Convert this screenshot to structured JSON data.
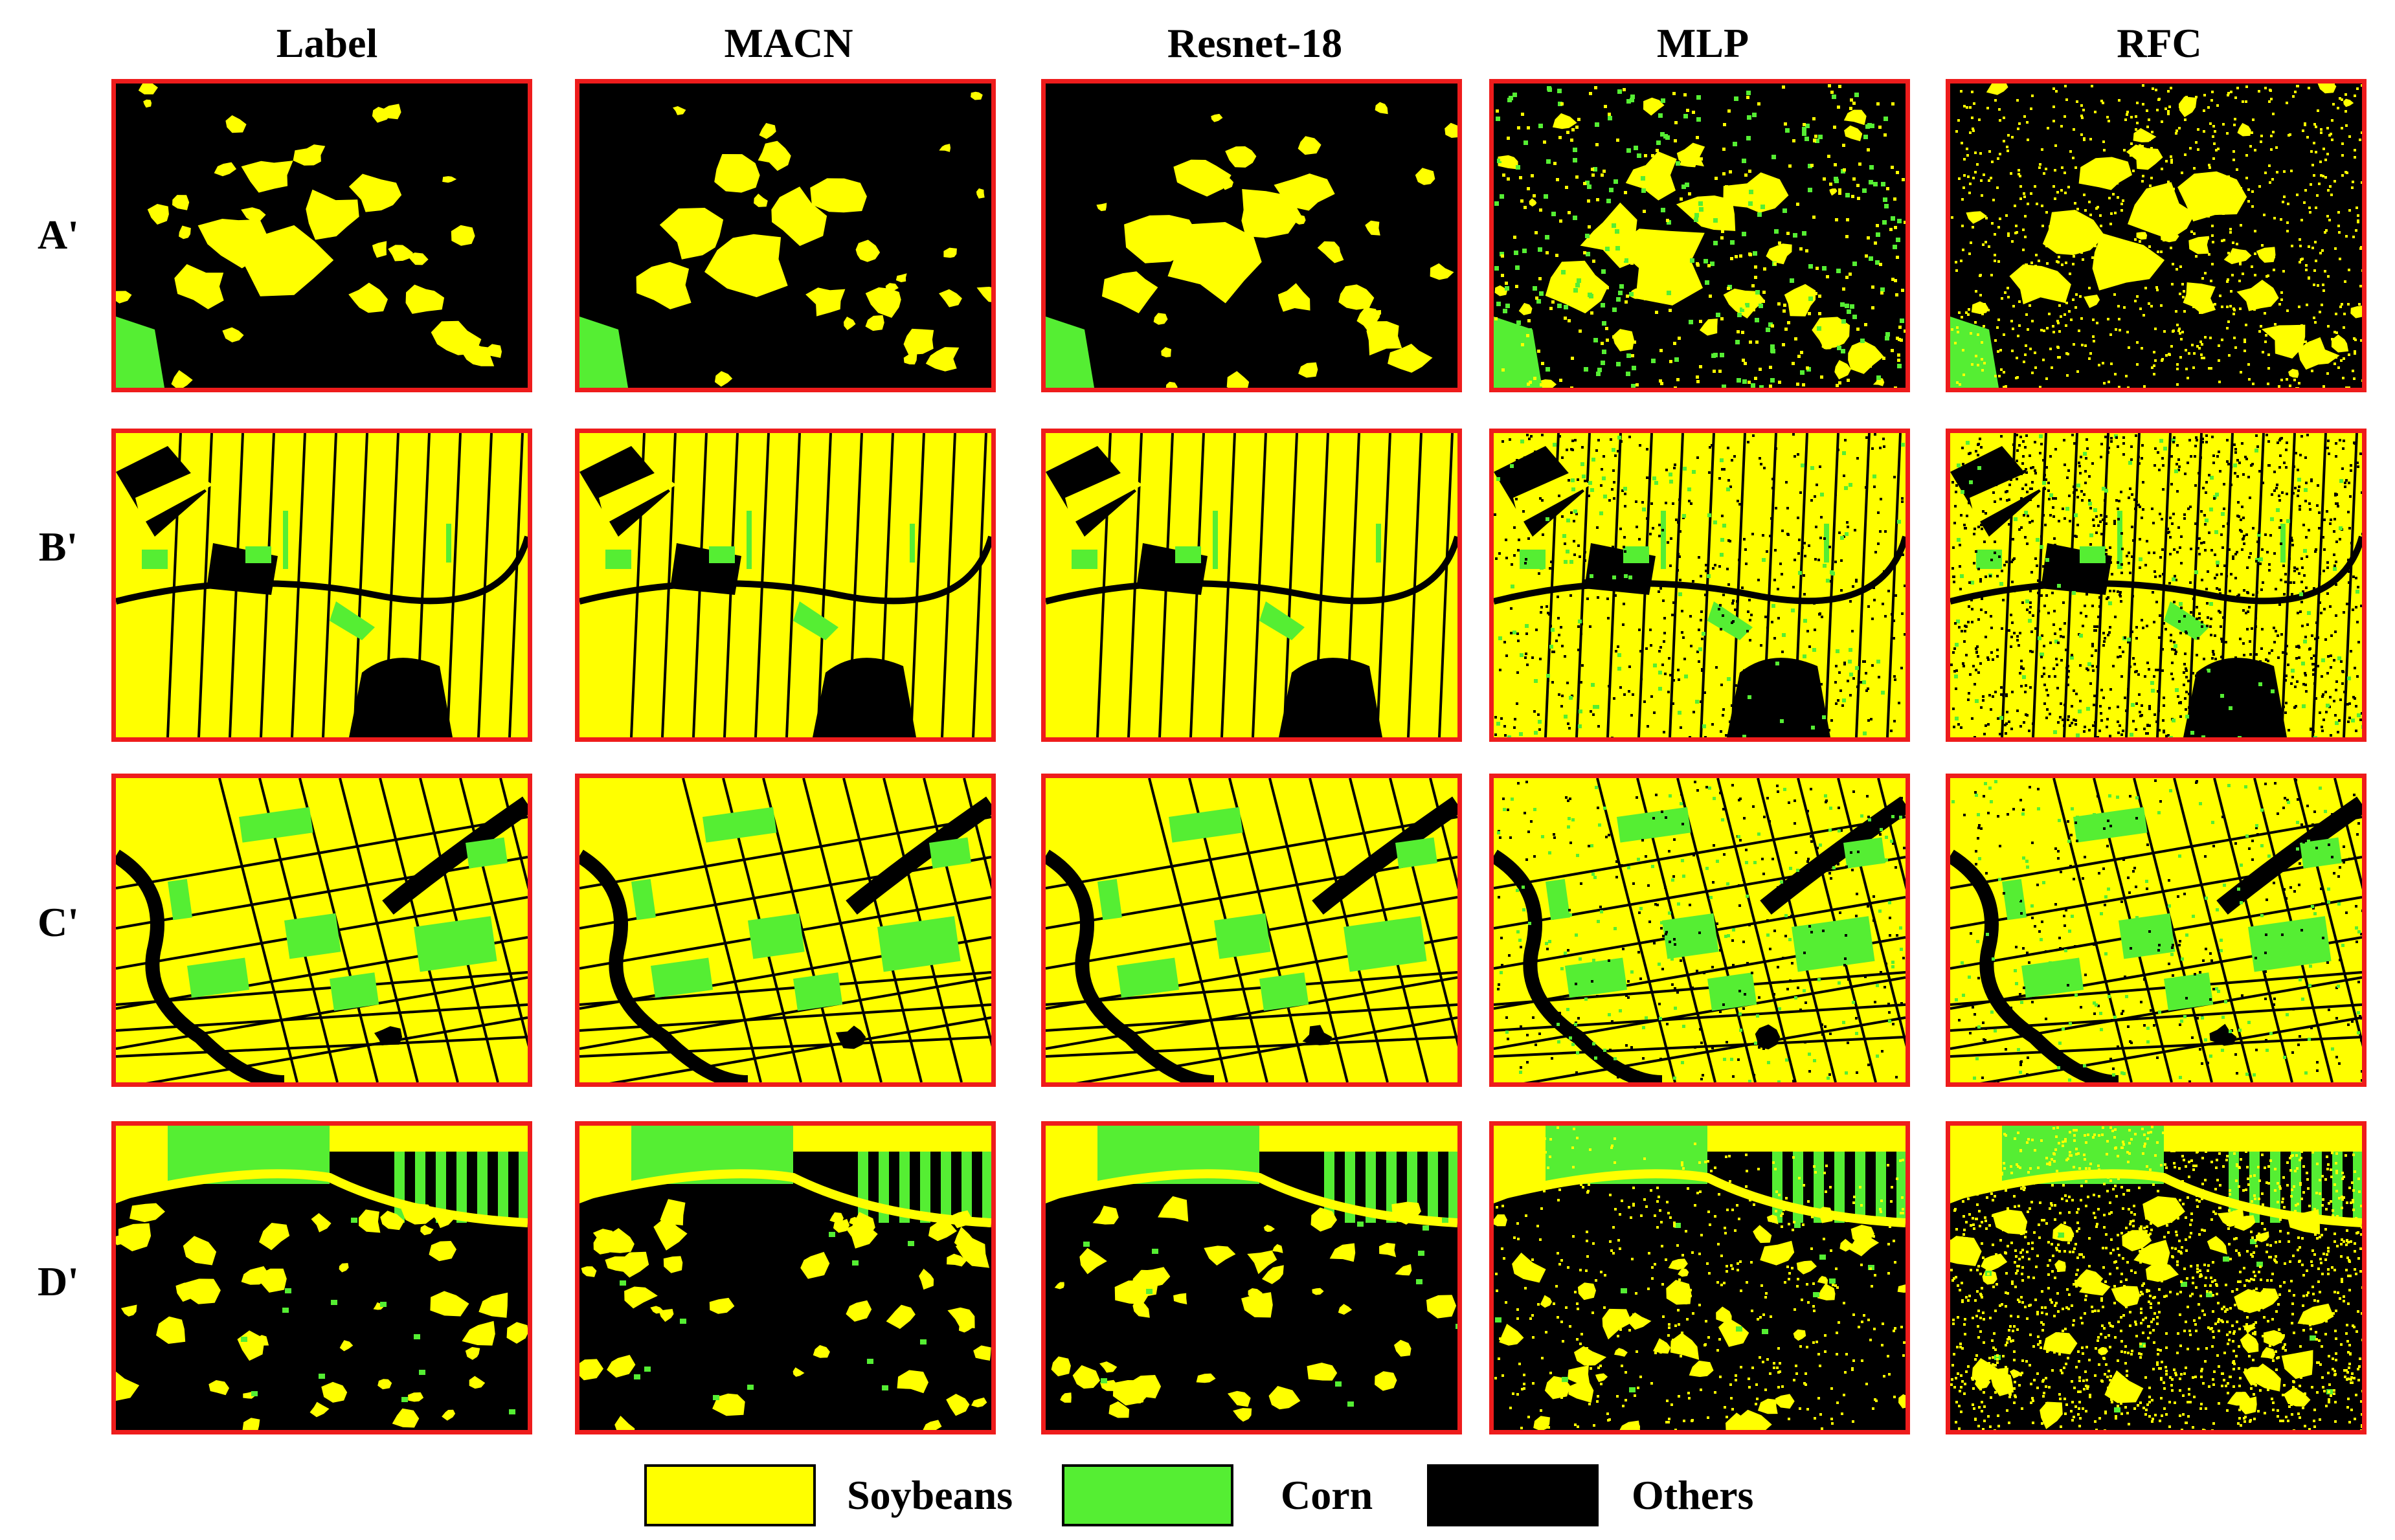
{
  "columns": [
    "Label",
    "MACN",
    "Resnet-18",
    "MLP",
    "RFC"
  ],
  "rows": [
    "A'",
    "B'",
    "C'",
    "D'"
  ],
  "legend": [
    {
      "name": "Soybeans",
      "color": "#ffff00"
    },
    {
      "name": "Corn",
      "color": "#55ee33"
    },
    {
      "name": "Others",
      "color": "#000000"
    }
  ],
  "colors": {
    "soybeans": "#ffff00",
    "corn": "#55ee33",
    "others": "#000000",
    "panel_border": "#ee1c1c"
  }
}
